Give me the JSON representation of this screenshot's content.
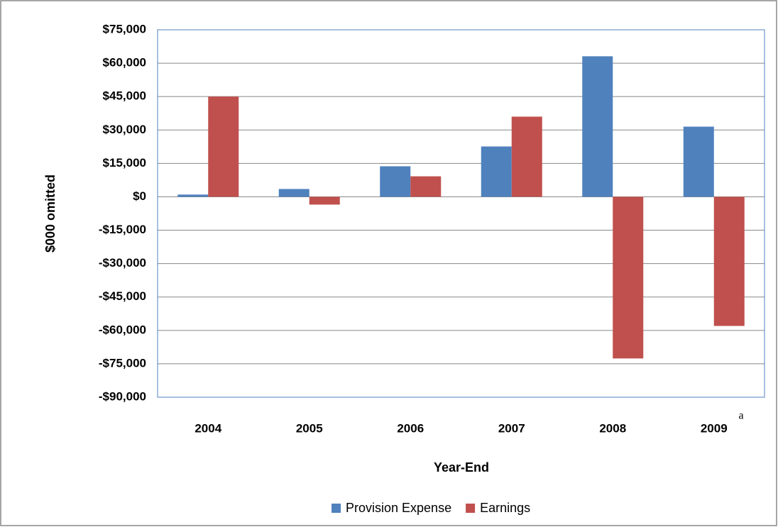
{
  "chart_data": {
    "type": "bar",
    "categories": [
      "2004",
      "2005",
      "2006",
      "2007",
      "2008",
      "2009"
    ],
    "series": [
      {
        "name": "Provision Expense",
        "color": "#4f81bd",
        "values": [
          1000,
          3500,
          13700,
          22600,
          63100,
          31500
        ]
      },
      {
        "name": "Earnings",
        "color": "#c0504d",
        "values": [
          45000,
          -3500,
          9200,
          36000,
          -72600,
          -58000
        ]
      }
    ],
    "ylim": [
      -90000,
      75000
    ],
    "yticks": [
      {
        "value": 75000,
        "label": "$75,000"
      },
      {
        "value": 60000,
        "label": "$60,000"
      },
      {
        "value": 45000,
        "label": "$45,000"
      },
      {
        "value": 30000,
        "label": "$30,000"
      },
      {
        "value": 15000,
        "label": "$15,000"
      },
      {
        "value": 0,
        "label": "$0"
      },
      {
        "value": -15000,
        "label": "-$15,000"
      },
      {
        "value": -30000,
        "label": "-$30,000"
      },
      {
        "value": -45000,
        "label": "-$45,000"
      },
      {
        "value": -60000,
        "label": "-$60,000"
      },
      {
        "value": -75000,
        "label": "-$75,000"
      },
      {
        "value": -90000,
        "label": "-$90,000"
      }
    ],
    "y_label": "$000 omitted",
    "x_label": "Year-End",
    "annotation": "a",
    "grid": true,
    "legend": "bottom"
  }
}
